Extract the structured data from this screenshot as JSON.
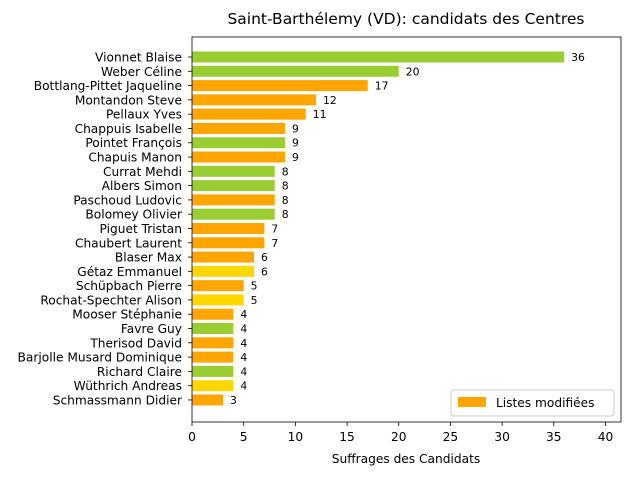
{
  "chart_data": {
    "type": "bar",
    "orientation": "horizontal",
    "title": "Saint-Barthélemy (VD): candidats des Centres",
    "xlabel": "Suffrages des Candidats",
    "ylabel": "",
    "xlim": [
      0,
      41.5
    ],
    "xticks": [
      0,
      5,
      10,
      15,
      20,
      25,
      30,
      35,
      40
    ],
    "grid": false,
    "legend": {
      "placement": "lower-right",
      "entries": [
        {
          "label": "Listes modifiées",
          "color": "#ffa500"
        }
      ]
    },
    "bars": [
      {
        "name": "Vionnet Blaise",
        "value": 36,
        "color": "#9acd32"
      },
      {
        "name": "Weber Céline",
        "value": 20,
        "color": "#9acd32"
      },
      {
        "name": "Bottlang-Pittet Jaqueline",
        "value": 17,
        "color": "#ffa500"
      },
      {
        "name": "Montandon Steve",
        "value": 12,
        "color": "#ffa500"
      },
      {
        "name": "Pellaux Yves",
        "value": 11,
        "color": "#ffa500"
      },
      {
        "name": "Chappuis Isabelle",
        "value": 9,
        "color": "#ffa500"
      },
      {
        "name": "Pointet François",
        "value": 9,
        "color": "#9acd32"
      },
      {
        "name": "Chapuis Manon",
        "value": 9,
        "color": "#ffa500"
      },
      {
        "name": "Currat Mehdi",
        "value": 8,
        "color": "#9acd32"
      },
      {
        "name": "Albers Simon",
        "value": 8,
        "color": "#9acd32"
      },
      {
        "name": "Paschoud Ludovic",
        "value": 8,
        "color": "#ffa500"
      },
      {
        "name": "Bolomey Olivier",
        "value": 8,
        "color": "#9acd32"
      },
      {
        "name": "Piguet Tristan",
        "value": 7,
        "color": "#ffa500"
      },
      {
        "name": "Chaubert Laurent",
        "value": 7,
        "color": "#ffa500"
      },
      {
        "name": "Blaser Max",
        "value": 6,
        "color": "#ffa500"
      },
      {
        "name": "Gétaz Emmanuel",
        "value": 6,
        "color": "#ffd700"
      },
      {
        "name": "Schüpbach Pierre",
        "value": 5,
        "color": "#ffa500"
      },
      {
        "name": "Rochat-Spechter Alison",
        "value": 5,
        "color": "#ffd700"
      },
      {
        "name": "Mooser Stéphanie",
        "value": 4,
        "color": "#ffa500"
      },
      {
        "name": "Favre Guy",
        "value": 4,
        "color": "#9acd32"
      },
      {
        "name": "Therisod David",
        "value": 4,
        "color": "#ffa500"
      },
      {
        "name": "Barjolle Musard Dominique",
        "value": 4,
        "color": "#ffa500"
      },
      {
        "name": "Richard Claire",
        "value": 4,
        "color": "#9acd32"
      },
      {
        "name": "Wüthrich Andreas",
        "value": 4,
        "color": "#ffd700"
      },
      {
        "name": "Schmassmann Didier",
        "value": 3,
        "color": "#ffa500"
      }
    ]
  }
}
